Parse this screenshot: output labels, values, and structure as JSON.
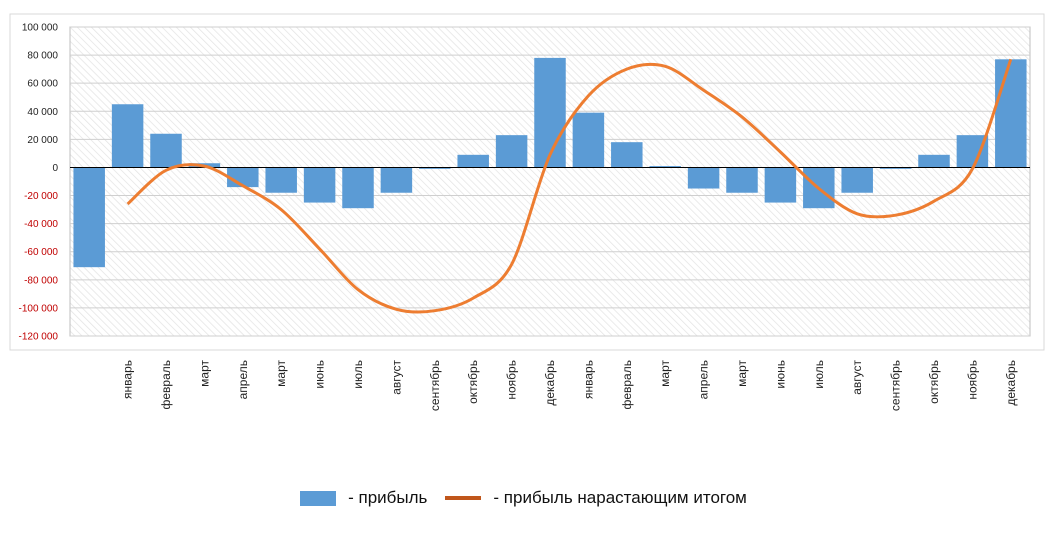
{
  "chart_data": {
    "type": "bar",
    "categories": [
      "",
      "январь",
      "февраль",
      "март",
      "апрель",
      "март",
      "июнь",
      "июль",
      "август",
      "сентябрь",
      "октябрь",
      "ноябрь",
      "декабрь",
      "январь",
      "февраль",
      "март",
      "апрель",
      "март",
      "июнь",
      "июль",
      "август",
      "сентябрь",
      "октябрь",
      "ноябрь",
      "декабрь"
    ],
    "series": [
      {
        "name": "- прибыль",
        "type": "bar",
        "color": "#5B9BD5",
        "values": [
          -71000,
          45000,
          24000,
          3000,
          -14000,
          -18000,
          -25000,
          -29000,
          -18000,
          -1000,
          9000,
          23000,
          78000,
          39000,
          18000,
          1000,
          -15000,
          -18000,
          -25000,
          -29000,
          -18000,
          -1000,
          9000,
          23000,
          77000
        ]
      },
      {
        "name": "- прибыль нарастающим итогом",
        "type": "line",
        "color": "#ED7D31",
        "values": [
          null,
          -26000,
          -2000,
          1000,
          -13000,
          -30000,
          -58000,
          -87000,
          -101000,
          -102000,
          -93000,
          -69000,
          9000,
          51000,
          70000,
          72000,
          55000,
          36000,
          11000,
          -15000,
          -33000,
          -34000,
          -24000,
          -1000,
          77000
        ]
      }
    ],
    "y_ticks": [
      "100 000",
      "80 000",
      "60 000",
      "40 000",
      "20 000",
      "0",
      "-20 000",
      "-40 000",
      "-60 000",
      "-80 000",
      "-100 000",
      "-120 000"
    ],
    "ylim": [
      -120000,
      100000
    ],
    "xlabel": "",
    "ylabel": "",
    "title": "",
    "grid": true,
    "legend_position": "bottom",
    "colors": {
      "positive_tick": "#222222",
      "negative_tick": "#C00000",
      "zero_line": "#000000"
    }
  },
  "legend": {
    "bar_label": "- прибыль",
    "line_label": "- прибыль нарастающим итогом"
  }
}
